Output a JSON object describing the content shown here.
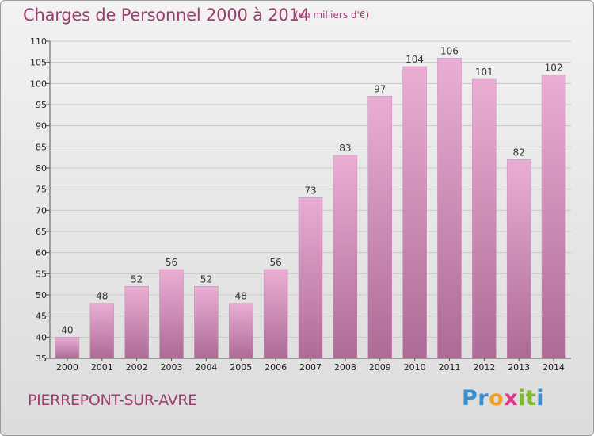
{
  "header": {
    "title": "Charges de Personnel 2000 à 2014",
    "unit": "(en milliers d'€)"
  },
  "footer": {
    "commune": "PIERREPONT-SUR-AVRE",
    "logo_letters": [
      "P",
      "r",
      "o",
      "x",
      "i",
      "t",
      "i"
    ],
    "logo_colors": [
      "#3a8fd0",
      "#3a8fd0",
      "#f0a020",
      "#e03a8c",
      "#7dbb2a",
      "#7dbb2a",
      "#3a8fd0"
    ]
  },
  "colors": {
    "bar_fill_top": "#eaaed4",
    "bar_fill_bottom": "#ad6b96",
    "accent": "#9b3f6f"
  },
  "chart_data": {
    "type": "bar",
    "title": "Charges de Personnel 2000 à 2014",
    "subtitle": "(en milliers d'€)",
    "categories": [
      "2000",
      "2001",
      "2002",
      "2003",
      "2004",
      "2005",
      "2006",
      "2007",
      "2008",
      "2009",
      "2010",
      "2011",
      "2012",
      "2013",
      "2014"
    ],
    "values": [
      40,
      48,
      52,
      56,
      52,
      48,
      56,
      73,
      83,
      97,
      104,
      106,
      101,
      82,
      102
    ],
    "ylim": [
      35,
      110
    ],
    "yticks": [
      35,
      40,
      45,
      50,
      55,
      60,
      65,
      70,
      75,
      80,
      85,
      90,
      95,
      100,
      105,
      110
    ],
    "grid": true,
    "data_labels": true
  }
}
